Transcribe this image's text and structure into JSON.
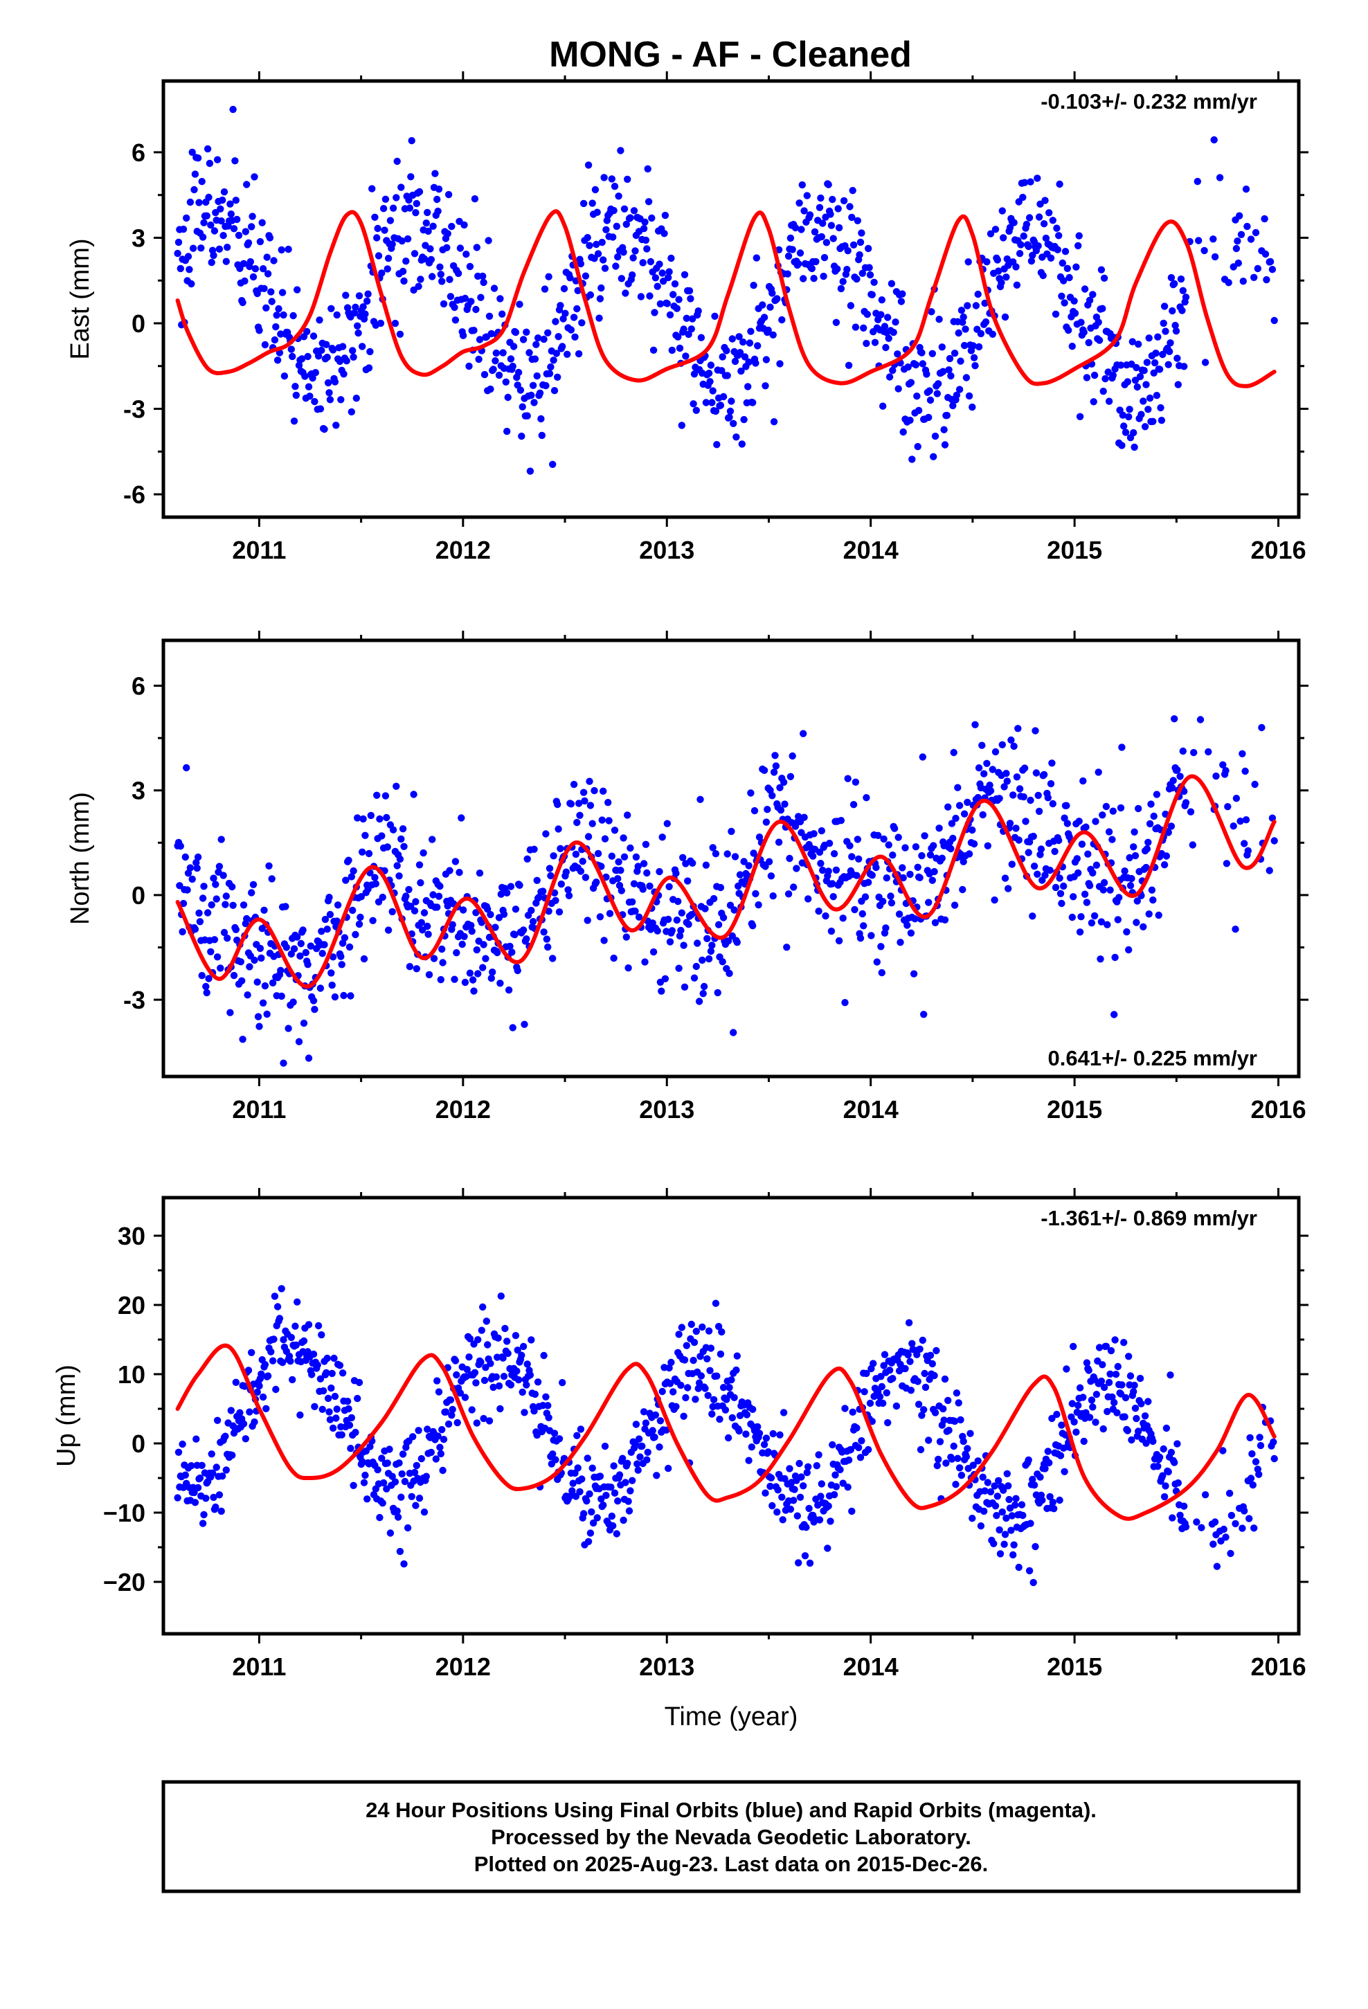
{
  "title": "MONG  - AF - Cleaned",
  "footer": {
    "line1": "24 Hour Positions Using Final Orbits (blue) and Rapid Orbits (magenta).",
    "line2": "Processed by the Nevada Geodetic Laboratory.",
    "line3": "Plotted on 2025-Aug-23. Last data on 2015-Dec-26."
  },
  "colors": {
    "points": "#0000ff",
    "fit": "#ff0000",
    "axes": "#000000"
  },
  "chart_data": [
    {
      "type": "scatter",
      "ylabel": "East (mm)",
      "xlabel": "",
      "rate_label": "-0.103+/- 0.232 mm/yr",
      "rate_position": "top-right",
      "xlim": [
        2010.53,
        2016.1
      ],
      "ylim": [
        -6.8,
        8.5
      ],
      "xticks": [
        2011,
        2012,
        2013,
        2014,
        2015,
        2016
      ],
      "xtick_labels": [
        "2011",
        "2012",
        "2013",
        "2014",
        "2015",
        "2016"
      ],
      "yticks": [
        -6,
        -3,
        0,
        3,
        6
      ],
      "ytick_labels": [
        "-6",
        "-3",
        "0",
        "3",
        "6"
      ],
      "data_span": [
        2010.6,
        2015.98
      ],
      "points_per_year": 210,
      "gap": [
        2015.55,
        2015.68
      ],
      "series": [
        {
          "kind": "observations",
          "model": {
            "trend": -0.103,
            "offset": 0.9,
            "annual": [
              0.5,
              -2.7
            ],
            "semiannual": [
              -0.1,
              0.1
            ],
            "scatter": 1.2
          }
        },
        {
          "kind": "fit",
          "knots": {
            "x": [
              2010.6,
              2010.65,
              2010.75,
              2010.85,
              2010.95,
              2011.05,
              2011.15,
              2011.25,
              2011.35,
              2011.43,
              2011.5,
              2011.6,
              2011.7,
              2011.8,
              2011.9,
              2012.0,
              2012.1,
              2012.2,
              2012.3,
              2012.43,
              2012.5,
              2012.6,
              2012.7,
              2012.85,
              2013.0,
              2013.2,
              2013.3,
              2013.43,
              2013.5,
              2013.6,
              2013.7,
              2013.85,
              2014.0,
              2014.2,
              2014.3,
              2014.43,
              2014.5,
              2014.6,
              2014.75,
              2014.85,
              2015.0,
              2015.2,
              2015.3,
              2015.45,
              2015.55,
              2015.65,
              2015.75,
              2015.85,
              2015.98
            ],
            "y": [
              0.8,
              -0.3,
              -1.6,
              -1.7,
              -1.4,
              -1.0,
              -0.7,
              0.3,
              2.5,
              3.8,
              3.5,
              1.0,
              -1.2,
              -1.8,
              -1.5,
              -1.0,
              -0.8,
              -0.2,
              1.8,
              3.8,
              3.4,
              0.8,
              -1.3,
              -2.0,
              -1.6,
              -0.9,
              1.0,
              3.7,
              3.3,
              0.5,
              -1.5,
              -2.1,
              -1.7,
              -0.9,
              1.0,
              3.6,
              3.1,
              0.3,
              -1.8,
              -2.1,
              -1.6,
              -0.6,
              1.4,
              3.5,
              2.8,
              0.2,
              -1.8,
              -2.2,
              -1.7
            ]
          }
        }
      ]
    },
    {
      "type": "scatter",
      "ylabel": "North (mm)",
      "xlabel": "",
      "rate_label": "0.641+/- 0.225 mm/yr",
      "rate_position": "bottom-right",
      "xlim": [
        2010.53,
        2016.1
      ],
      "ylim": [
        -5.2,
        7.3
      ],
      "xticks": [
        2011,
        2012,
        2013,
        2014,
        2015,
        2016
      ],
      "xtick_labels": [
        "2011",
        "2012",
        "2013",
        "2014",
        "2015",
        "2016"
      ],
      "yticks": [
        -3,
        0,
        3,
        6
      ],
      "ytick_labels": [
        "-3",
        "0",
        "3",
        "6"
      ],
      "data_span": [
        2010.6,
        2015.98
      ],
      "points_per_year": 210,
      "gap": [
        2015.55,
        2015.68
      ],
      "series": [
        {
          "kind": "observations",
          "model": {
            "trend": 0.641,
            "offset": -1.0,
            "annual": [
              -0.8,
              -0.9
            ],
            "semiannual": [
              0.4,
              0.3
            ],
            "scatter": 1.1
          }
        },
        {
          "kind": "fit",
          "knots": {
            "x": [
              2010.6,
              2010.8,
              2011.0,
              2011.25,
              2011.55,
              2011.8,
              2012.02,
              2012.28,
              2012.55,
              2012.82,
              2013.02,
              2013.28,
              2013.55,
              2013.82,
              2014.05,
              2014.28,
              2014.55,
              2014.82,
              2015.05,
              2015.3,
              2015.57,
              2015.83,
              2015.98
            ],
            "y": [
              -0.2,
              -2.4,
              -0.7,
              -2.6,
              0.8,
              -1.8,
              -0.1,
              -1.9,
              1.5,
              -1.0,
              0.5,
              -1.2,
              2.1,
              -0.4,
              1.1,
              -0.6,
              2.7,
              0.2,
              1.8,
              0.0,
              3.4,
              0.8,
              2.1
            ]
          }
        }
      ]
    },
    {
      "type": "scatter",
      "ylabel": "Up (mm)",
      "xlabel": "Time (year)",
      "rate_label": "-1.361+/- 0.869 mm/yr",
      "rate_position": "top-right",
      "xlim": [
        2010.53,
        2016.1
      ],
      "ylim": [
        -27.5,
        35.5
      ],
      "xticks": [
        2011,
        2012,
        2013,
        2014,
        2015,
        2016
      ],
      "xtick_labels": [
        "2011",
        "2012",
        "2013",
        "2014",
        "2015",
        "2016"
      ],
      "yticks": [
        -20,
        -10,
        0,
        10,
        20,
        30
      ],
      "ytick_labels": [
        "−20",
        "−10",
        "0",
        "10",
        "20",
        "30"
      ],
      "data_span": [
        2010.6,
        2015.98
      ],
      "points_per_year": 210,
      "gap": [
        2015.55,
        2015.68
      ],
      "series": [
        {
          "kind": "observations",
          "model": {
            "trend": -1.361,
            "offset": 4.5,
            "annual": [
              5.0,
              9.0
            ],
            "semiannual": [
              0.5,
              0.3
            ],
            "scatter": 3.5
          }
        },
        {
          "kind": "fit",
          "knots": {
            "x": [
              2010.6,
              2010.7,
              2010.85,
              2011.0,
              2011.15,
              2011.25,
              2011.4,
              2011.6,
              2011.8,
              2011.9,
              2012.05,
              2012.2,
              2012.3,
              2012.45,
              2012.6,
              2012.8,
              2012.9,
              2013.05,
              2013.2,
              2013.3,
              2013.45,
              2013.6,
              2013.8,
              2013.9,
              2014.05,
              2014.2,
              2014.3,
              2014.45,
              2014.6,
              2014.8,
              2014.9,
              2015.05,
              2015.22,
              2015.35,
              2015.55,
              2015.7,
              2015.85,
              2015.98
            ],
            "y": [
              5.0,
              10.0,
              14.0,
              5.0,
              -3.5,
              -5.0,
              -3.5,
              3.0,
              12.0,
              11.0,
              1.0,
              -5.5,
              -6.5,
              -4.5,
              1.0,
              10.5,
              10.0,
              0.0,
              -7.5,
              -7.8,
              -5.5,
              0.5,
              10.0,
              9.0,
              -1.5,
              -8.5,
              -9.0,
              -6.5,
              -1.0,
              8.5,
              8.0,
              -5.0,
              -10.5,
              -10.0,
              -6.5,
              -1.0,
              7.0,
              1.0
            ]
          }
        }
      ]
    }
  ]
}
